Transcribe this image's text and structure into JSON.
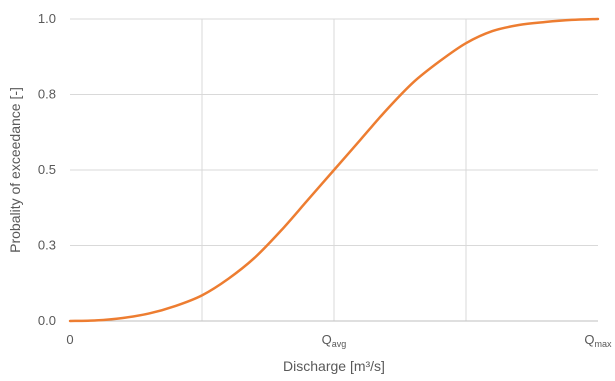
{
  "chart_data": {
    "type": "line",
    "title": "",
    "xlabel": "Discharge [m³/s]",
    "ylabel": "Probality of exceedance [-]",
    "ylim": [
      0,
      1
    ],
    "xlim": [
      0,
      2
    ],
    "grid": true,
    "legend": "none",
    "y_ticks": [
      {
        "value": 0.0,
        "label": "0.0"
      },
      {
        "value": 0.25,
        "label": "0.3"
      },
      {
        "value": 0.5,
        "label": "0.5"
      },
      {
        "value": 0.75,
        "label": "0.8"
      },
      {
        "value": 1.0,
        "label": "1.0"
      }
    ],
    "x_ticks": [
      {
        "value": 0,
        "main": "0",
        "sub": ""
      },
      {
        "value": 1,
        "main": "Q",
        "sub": "avg"
      },
      {
        "value": 2,
        "main": "Q",
        "sub": "max"
      }
    ],
    "x_gridlines": [
      0.5,
      1.0,
      1.5
    ],
    "series": [
      {
        "color": "#ED7D31",
        "x": [
          0,
          0.1,
          0.2,
          0.3,
          0.4,
          0.5,
          0.6,
          0.7,
          0.8,
          0.9,
          1.0,
          1.1,
          1.2,
          1.3,
          1.4,
          1.5,
          1.6,
          1.7,
          1.8,
          1.9,
          2.0
        ],
        "y": [
          0.0,
          0.002,
          0.01,
          0.025,
          0.05,
          0.085,
          0.14,
          0.21,
          0.3,
          0.4,
          0.5,
          0.6,
          0.7,
          0.79,
          0.86,
          0.92,
          0.96,
          0.98,
          0.99,
          0.997,
          1.0
        ]
      }
    ]
  }
}
